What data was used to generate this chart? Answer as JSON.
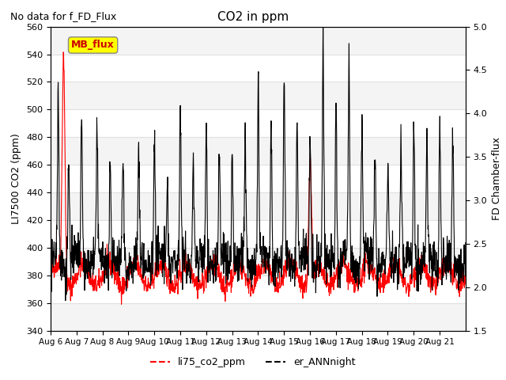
{
  "title": "CO2 in ppm",
  "subtitle": "No data for f_FD_Flux",
  "ylabel_left": "LI7500 CO2 (ppm)",
  "ylabel_right": "FD Chamber-flux",
  "ylim_left": [
    340,
    560
  ],
  "ylim_right": [
    1.5,
    5.0
  ],
  "yticks_left": [
    340,
    360,
    380,
    400,
    420,
    440,
    460,
    480,
    500,
    520,
    540,
    560
  ],
  "yticks_right": [
    1.5,
    2.0,
    2.5,
    3.0,
    3.5,
    4.0,
    4.5,
    5.0
  ],
  "xticklabels": [
    "Aug 6",
    "Aug 7",
    "Aug 8",
    "Aug 9",
    "Aug 10",
    "Aug 11",
    "Aug 12",
    "Aug 13",
    "Aug 14",
    "Aug 15",
    "Aug 16",
    "Aug 17",
    "Aug 18",
    "Aug 19",
    "Aug 20",
    "Aug 21"
  ],
  "n_days": 16,
  "legend_label_red": "li75_co2_ppm",
  "legend_label_black": "er_ANNnight",
  "mb_flux_label": "MB_flux",
  "line_color_red": "#ff0000",
  "line_color_black": "#000000",
  "mb_flux_box_color": "#ffff00",
  "mb_flux_text_color": "#cc0000",
  "background_color": "#ffffff",
  "grid_color": "#e0e0e0",
  "band_color": "#ebebeb"
}
